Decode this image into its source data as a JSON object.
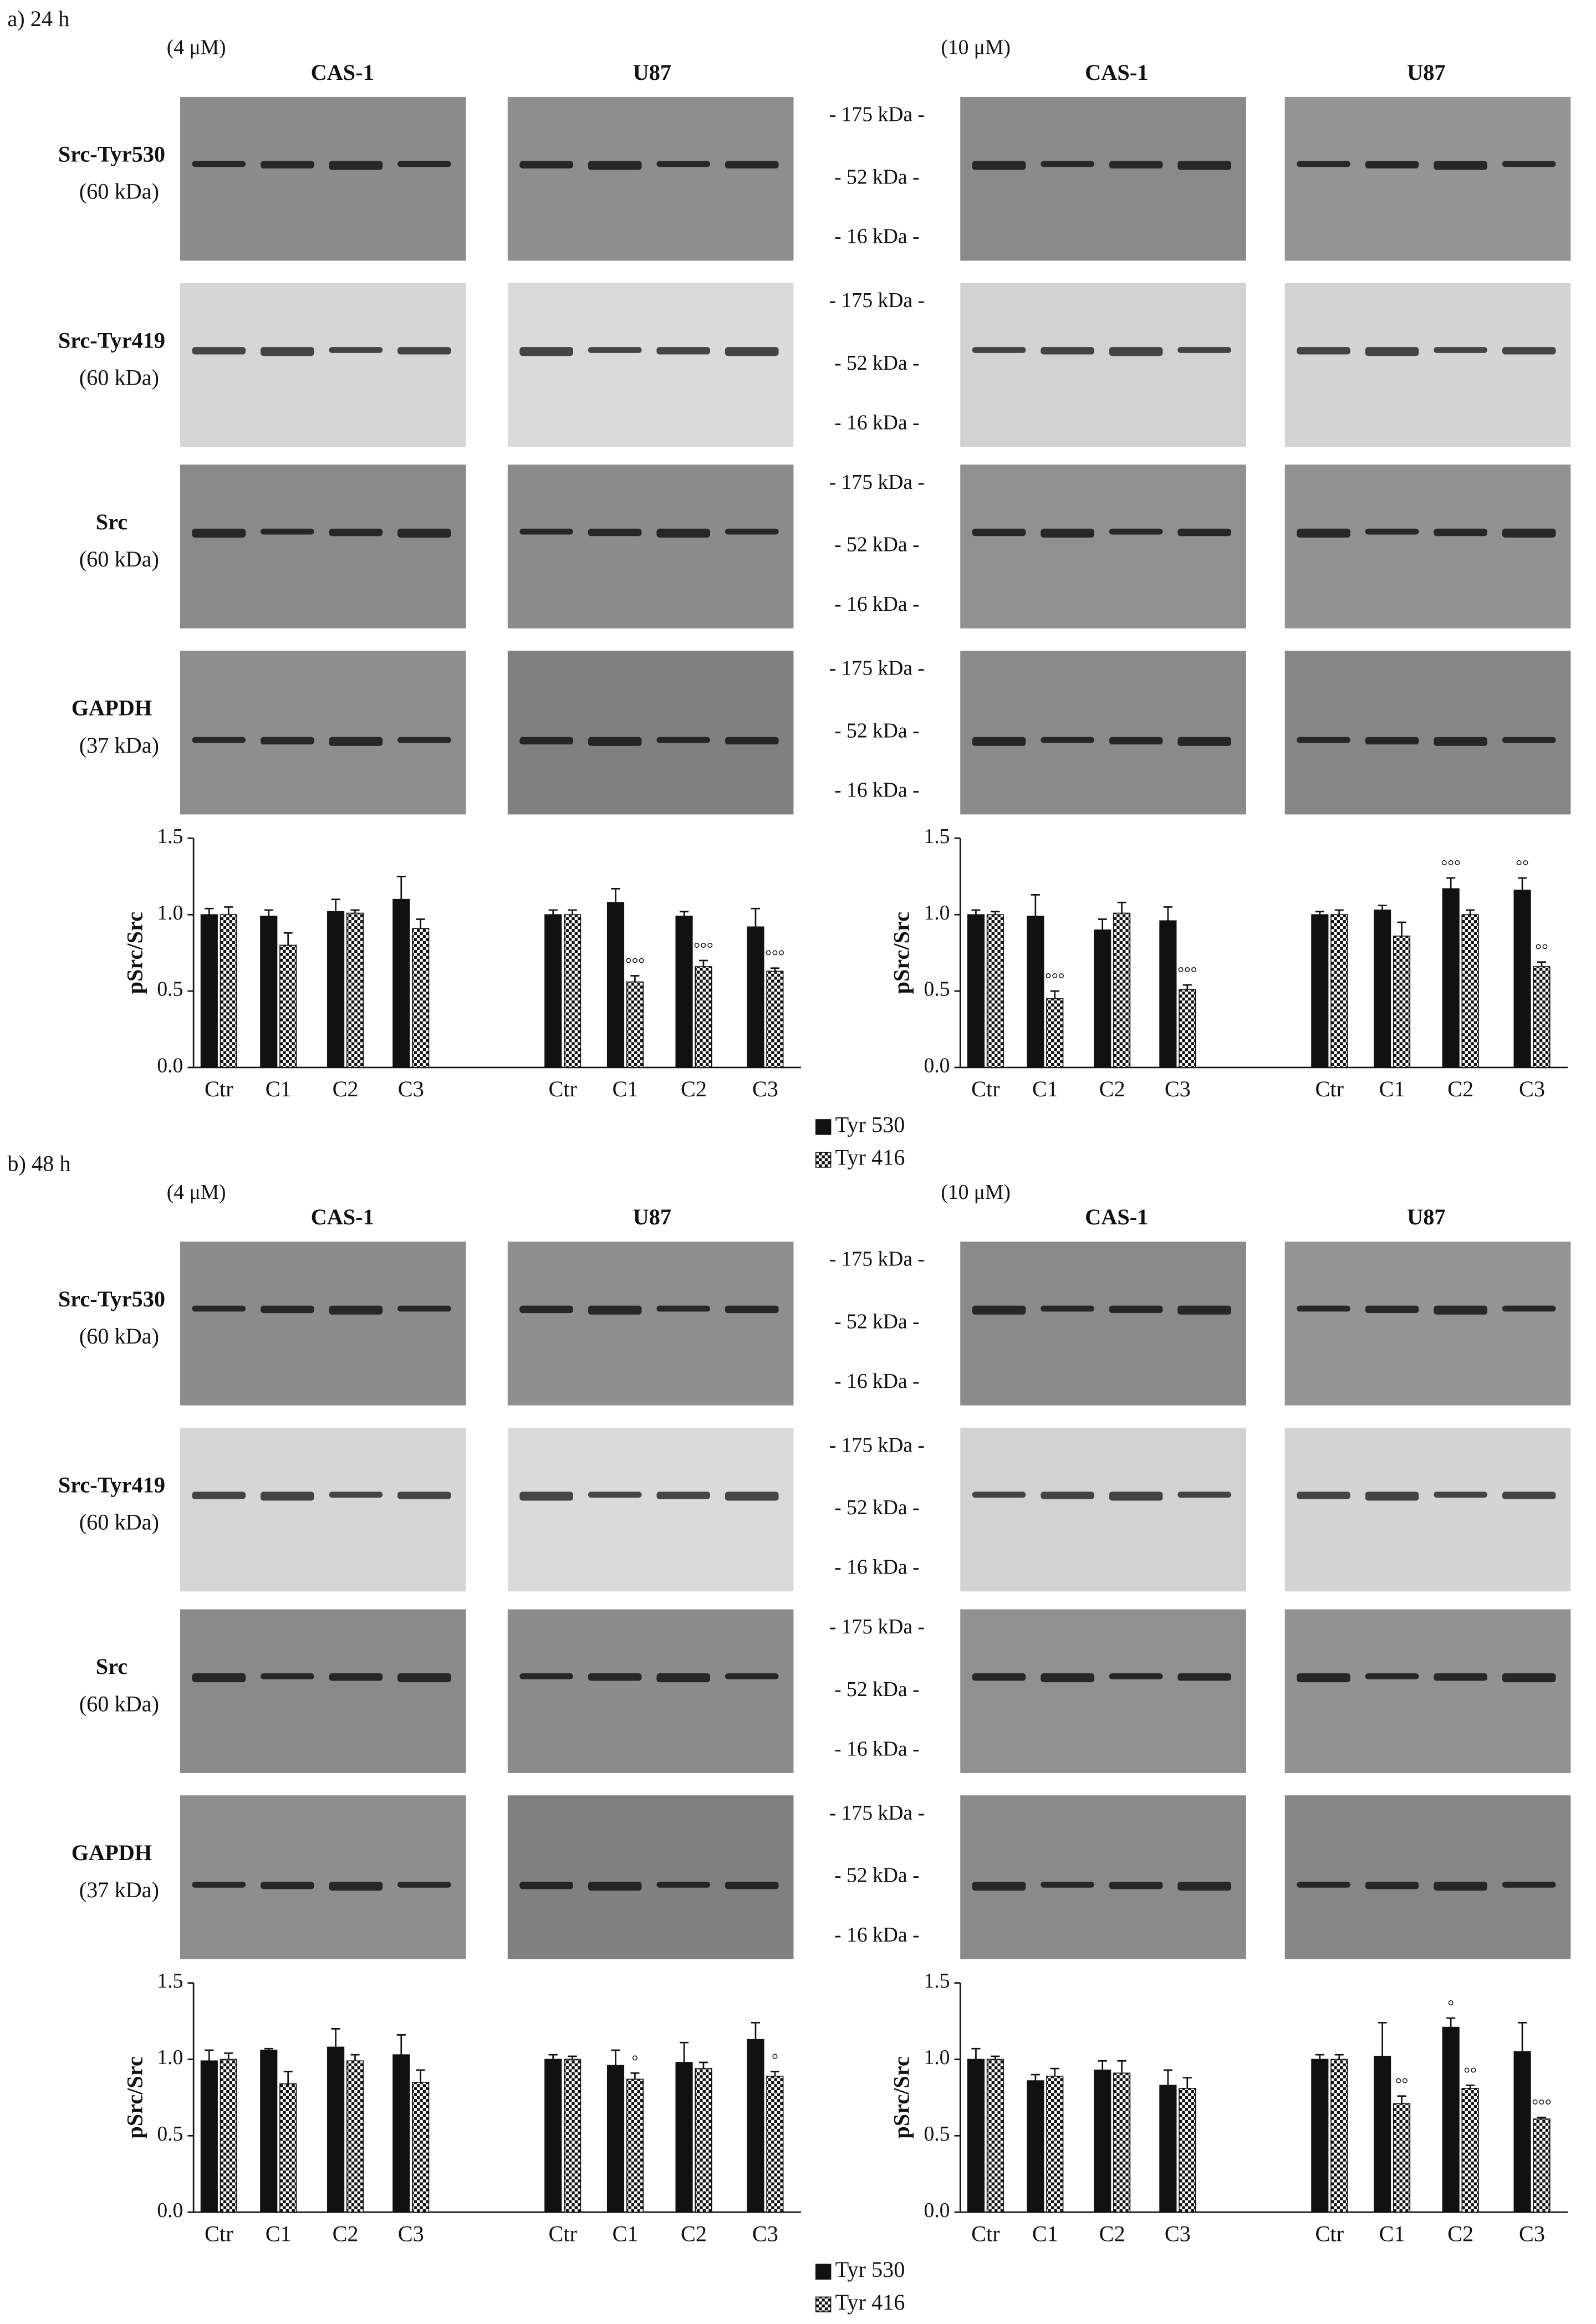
{
  "panels": [
    {
      "label": "a) 24 h",
      "concentrations": [
        "(4 μM)",
        "(10 μM)"
      ],
      "cell_lines": [
        "CAS-1",
        "U87",
        "CAS-1",
        "U87"
      ],
      "blot_rows": [
        {
          "name": "Src-Tyr530",
          "size": "(60 kDa)"
        },
        {
          "name": "Src-Tyr419",
          "size": "(60 kDa)"
        },
        {
          "name": "Src",
          "size": "(60 kDa)"
        },
        {
          "name": "GAPDH",
          "size": "(37 kDa)"
        }
      ],
      "markers": [
        "- 175 kDa -",
        "- 52 kDa -",
        "- 16 kDa -"
      ],
      "legend": [
        "Tyr 530",
        "Tyr 416"
      ],
      "charts": [
        {
          "type": "bar",
          "ylabel": "pSrc/Src",
          "categories": [
            "Ctr",
            "C1",
            "C2",
            "C3",
            "Ctr",
            "C1",
            "C2",
            "C3"
          ],
          "ylim": [
            0,
            1.5
          ],
          "yticks": [
            {
              "value": 0,
              "label": "0.0"
            },
            0.5,
            {
              "value": 1,
              "label": "1.0"
            },
            1.5
          ],
          "series": [
            {
              "values": [
                1.0,
                0.99,
                1.02,
                1.1,
                1.0,
                1.08,
                0.99,
                0.92
              ],
              "errors": [
                0.04,
                0.04,
                0.08,
                0.15,
                0.03,
                0.09,
                0.03,
                0.12
              ],
              "annotations": [
                null,
                null,
                null,
                null,
                null,
                null,
                null,
                null
              ]
            },
            {
              "values": [
                1.0,
                0.8,
                1.01,
                0.91,
                1.0,
                0.56,
                0.66,
                0.63
              ],
              "errors": [
                0.05,
                0.08,
                0.02,
                0.06,
                0.03,
                0.04,
                0.04,
                0.02
              ],
              "annotations": [
                null,
                null,
                null,
                null,
                null,
                "°°°",
                "°°°",
                "°°°"
              ]
            }
          ]
        },
        {
          "type": "bar",
          "ylabel": "pSrc/Src",
          "categories": [
            "Ctr",
            "C1",
            "C2",
            "C3",
            "Ctr",
            "C1",
            "C2",
            "C3"
          ],
          "ylim": [
            0,
            1.5
          ],
          "yticks": [
            {
              "value": 0,
              "label": "0.0"
            },
            0.5,
            {
              "value": 1,
              "label": "1.0"
            },
            1.5
          ],
          "series": [
            {
              "values": [
                1.0,
                0.99,
                0.9,
                0.96,
                1.0,
                1.03,
                1.17,
                1.16
              ],
              "errors": [
                0.03,
                0.14,
                0.07,
                0.09,
                0.02,
                0.03,
                0.07,
                0.08
              ],
              "annotations": [
                null,
                null,
                null,
                null,
                null,
                null,
                "°°°",
                "°°"
              ]
            },
            {
              "values": [
                1.0,
                0.45,
                1.01,
                0.51,
                1.0,
                0.86,
                1.0,
                0.66
              ],
              "errors": [
                0.02,
                0.05,
                0.07,
                0.03,
                0.03,
                0.09,
                0.03,
                0.03
              ],
              "annotations": [
                null,
                "°°°",
                null,
                "°°°",
                null,
                null,
                null,
                "°°"
              ]
            }
          ]
        }
      ]
    },
    {
      "label": "b) 48 h",
      "concentrations": [
        "(4 μM)",
        "(10 μM)"
      ],
      "cell_lines": [
        "CAS-1",
        "U87",
        "CAS-1",
        "U87"
      ],
      "blot_rows": [
        {
          "name": "Src-Tyr530",
          "size": "(60 kDa)"
        },
        {
          "name": "Src-Tyr419",
          "size": "(60 kDa)"
        },
        {
          "name": "Src",
          "size": "(60 kDa)"
        },
        {
          "name": "GAPDH",
          "size": "(37 kDa)"
        }
      ],
      "markers": [
        "- 175 kDa -",
        "- 52 kDa -",
        "- 16 kDa -"
      ],
      "legend": [
        "Tyr 530",
        "Tyr 416"
      ],
      "charts": [
        {
          "type": "bar",
          "ylabel": "pSrc/Src",
          "categories": [
            "Ctr",
            "C1",
            "C2",
            "C3",
            "Ctr",
            "C1",
            "C2",
            "C3"
          ],
          "ylim": [
            0,
            1.5
          ],
          "yticks": [
            {
              "value": 0,
              "label": "0.0"
            },
            0.5,
            {
              "value": 1,
              "label": "1.0"
            },
            1.5
          ],
          "series": [
            {
              "values": [
                0.99,
                1.06,
                1.08,
                1.03,
                1.0,
                0.96,
                0.98,
                1.13
              ],
              "errors": [
                0.07,
                0.01,
                0.12,
                0.13,
                0.03,
                0.1,
                0.13,
                0.11
              ],
              "annotations": [
                null,
                null,
                null,
                null,
                null,
                null,
                null,
                null
              ]
            },
            {
              "values": [
                1.0,
                0.84,
                0.99,
                0.85,
                1.0,
                0.87,
                0.94,
                0.89
              ],
              "errors": [
                0.04,
                0.08,
                0.04,
                0.08,
                0.02,
                0.04,
                0.04,
                0.03
              ],
              "annotations": [
                null,
                null,
                null,
                null,
                null,
                "°",
                null,
                "°"
              ]
            }
          ]
        },
        {
          "type": "bar",
          "ylabel": "pSrc/Src",
          "categories": [
            "Ctr",
            "C1",
            "C2",
            "C3",
            "Ctr",
            "C1",
            "C2",
            "C3"
          ],
          "ylim": [
            0,
            1.5
          ],
          "yticks": [
            {
              "value": 0,
              "label": "0.0"
            },
            0.5,
            {
              "value": 1,
              "label": "1.0"
            },
            1.5
          ],
          "series": [
            {
              "values": [
                1.0,
                0.86,
                0.93,
                0.83,
                1.0,
                1.02,
                1.21,
                1.05
              ],
              "errors": [
                0.07,
                0.04,
                0.06,
                0.1,
                0.03,
                0.22,
                0.06,
                0.19
              ],
              "annotations": [
                null,
                null,
                null,
                null,
                null,
                null,
                "°",
                null
              ]
            },
            {
              "values": [
                1.0,
                0.89,
                0.91,
                0.81,
                1.0,
                0.71,
                0.81,
                0.61
              ],
              "errors": [
                0.02,
                0.05,
                0.08,
                0.07,
                0.03,
                0.05,
                0.02,
                0.01
              ],
              "annotations": [
                null,
                null,
                null,
                null,
                null,
                "°°",
                "°°",
                "°°°"
              ]
            }
          ]
        }
      ]
    }
  ]
}
